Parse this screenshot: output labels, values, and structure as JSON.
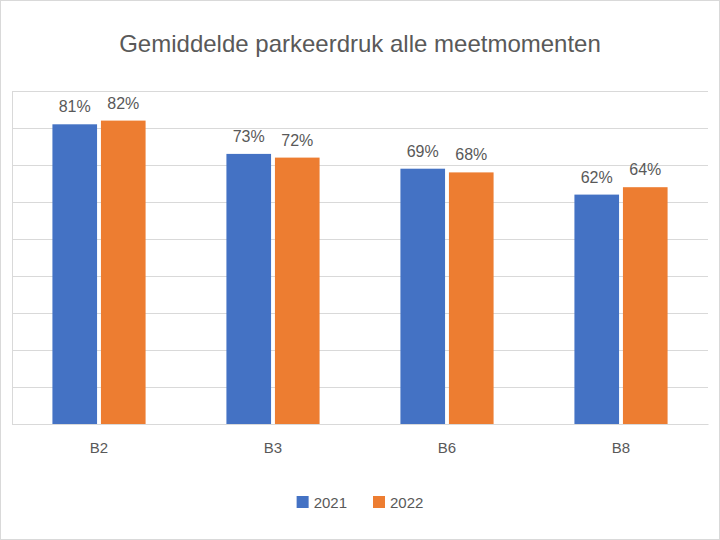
{
  "chart_data": {
    "type": "bar",
    "title": "Gemiddelde parkeerdruk alle meetmomenten",
    "categories": [
      "B2",
      "B3",
      "B6",
      "B8"
    ],
    "series": [
      {
        "name": "2021",
        "color": "#4472c4",
        "values": [
          81,
          73,
          69,
          62
        ],
        "value_labels": [
          "81%",
          "73%",
          "69%",
          "62%"
        ]
      },
      {
        "name": "2022",
        "color": "#ed7d31",
        "values": [
          82,
          72,
          68,
          64
        ],
        "value_labels": [
          "82%",
          "72%",
          "68%",
          "64%"
        ]
      }
    ],
    "ylim": [
      0,
      90
    ],
    "yticks": [
      0,
      10,
      20,
      30,
      40,
      50,
      60,
      70,
      80,
      90
    ],
    "grid": true,
    "legend": "bottom",
    "data_labels": true,
    "tick_labels": "x"
  }
}
